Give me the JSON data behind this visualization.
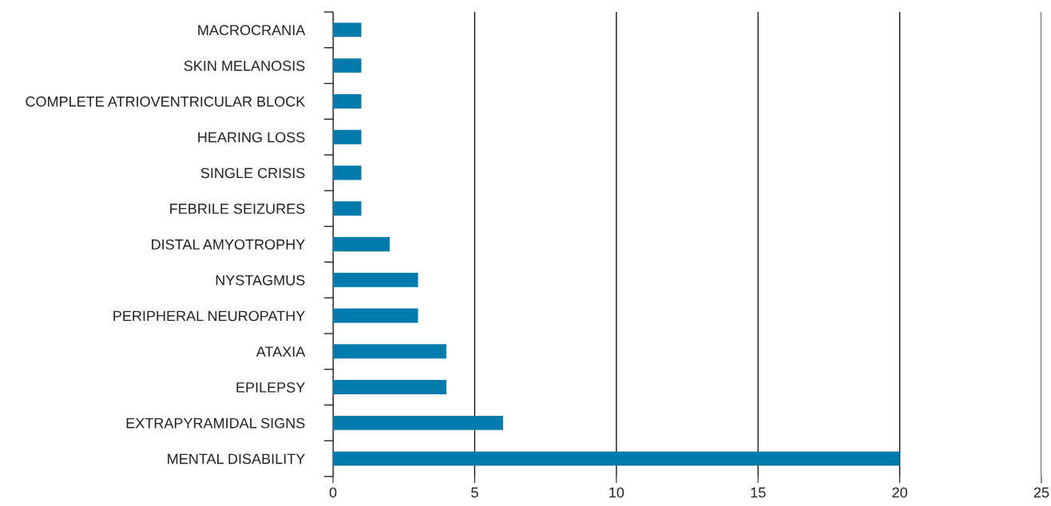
{
  "chart_data": {
    "type": "bar",
    "orientation": "horizontal",
    "categories": [
      "MACROCRANIA",
      "SKIN MELANOSIS",
      "COMPLETE ATRIOVENTRICULAR BLOCK",
      "HEARING LOSS",
      "SINGLE CRISIS",
      "FEBRILE SEIZURES",
      "DISTAL AMYOTROPHY",
      "NYSTAGMUS",
      "PERIPHERAL NEUROPATHY",
      "ATAXIA",
      "EPILEPSY",
      "EXTRAPYRAMIDAL SIGNS",
      "MENTAL DISABILITY"
    ],
    "values": [
      1,
      1,
      1,
      1,
      1,
      1,
      2,
      3,
      3,
      4,
      4,
      6,
      20
    ],
    "color": "#007bab",
    "xlim": [
      0,
      25
    ],
    "xticks": [
      0,
      5,
      10,
      15,
      20,
      25
    ],
    "grid": "x"
  }
}
